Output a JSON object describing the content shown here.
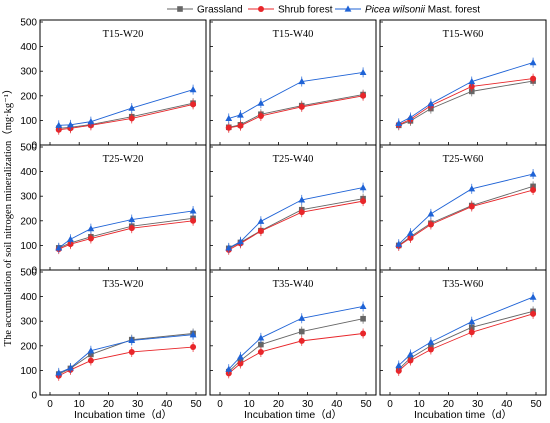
{
  "legend": [
    {
      "label": "Grassland",
      "italic_prefix": "",
      "color": "#666666",
      "marker": "square"
    },
    {
      "label": "Shrub forest",
      "italic_prefix": "",
      "color": "#e8262a",
      "marker": "circle"
    },
    {
      "label": " Mast. forest",
      "italic_prefix": "Picea wilsonii",
      "color": "#1f63d6",
      "marker": "triangle"
    }
  ],
  "ylabel": "The accumulation of soil nitrogen mineralization（mg·kg⁻¹）",
  "xlabel": "Incubation time（d）",
  "chart_data": [
    {
      "type": "line",
      "title": "T15-W20",
      "x": [
        3,
        7,
        14,
        28,
        49
      ],
      "xlim": [
        0,
        50
      ],
      "ylim": [
        0,
        500
      ],
      "series": [
        {
          "name": "Grassland",
          "values": [
            68,
            72,
            83,
            115,
            170
          ]
        },
        {
          "name": "Shrub forest",
          "values": [
            62,
            68,
            80,
            108,
            165
          ]
        },
        {
          "name": "Picea wilsonii Mast. forest",
          "values": [
            80,
            82,
            95,
            150,
            225
          ]
        }
      ]
    },
    {
      "type": "line",
      "title": "T15-W40",
      "x": [
        3,
        7,
        14,
        28,
        49
      ],
      "xlim": [
        0,
        50
      ],
      "ylim": [
        0,
        500
      ],
      "series": [
        {
          "name": "Grassland",
          "values": [
            72,
            82,
            125,
            160,
            205
          ]
        },
        {
          "name": "Shrub forest",
          "values": [
            70,
            78,
            118,
            155,
            200
          ]
        },
        {
          "name": "Picea wilsonii Mast. forest",
          "values": [
            108,
            122,
            170,
            258,
            295
          ]
        }
      ]
    },
    {
      "type": "line",
      "title": "T15-W60",
      "x": [
        3,
        7,
        14,
        28,
        49
      ],
      "xlim": [
        0,
        50
      ],
      "ylim": [
        0,
        500
      ],
      "series": [
        {
          "name": "Grassland",
          "values": [
            80,
            98,
            148,
            218,
            260
          ]
        },
        {
          "name": "Shrub forest",
          "values": [
            82,
            104,
            160,
            238,
            270
          ]
        },
        {
          "name": "Picea wilsonii Mast. forest",
          "values": [
            88,
            112,
            168,
            258,
            335
          ]
        }
      ]
    },
    {
      "type": "line",
      "title": "T25-W20",
      "x": [
        3,
        7,
        14,
        28,
        49
      ],
      "xlim": [
        0,
        50
      ],
      "ylim": [
        0,
        500
      ],
      "series": [
        {
          "name": "Grassland",
          "values": [
            90,
            110,
            135,
            178,
            210
          ]
        },
        {
          "name": "Shrub forest",
          "values": [
            85,
            105,
            128,
            170,
            200
          ]
        },
        {
          "name": "Picea wilsonii Mast. forest",
          "values": [
            90,
            125,
            168,
            205,
            240
          ]
        }
      ]
    },
    {
      "type": "line",
      "title": "T25-W40",
      "x": [
        3,
        7,
        14,
        28,
        49
      ],
      "xlim": [
        0,
        50
      ],
      "ylim": [
        0,
        500
      ],
      "series": [
        {
          "name": "Grassland",
          "values": [
            88,
            112,
            160,
            245,
            290
          ]
        },
        {
          "name": "Shrub forest",
          "values": [
            82,
            108,
            158,
            235,
            280
          ]
        },
        {
          "name": "Picea wilsonii Mast. forest",
          "values": [
            90,
            115,
            198,
            285,
            335
          ]
        }
      ]
    },
    {
      "type": "line",
      "title": "T25-W60",
      "x": [
        3,
        7,
        14,
        28,
        49
      ],
      "xlim": [
        0,
        50
      ],
      "ylim": [
        0,
        500
      ],
      "series": [
        {
          "name": "Grassland",
          "values": [
            100,
            135,
            190,
            262,
            340
          ]
        },
        {
          "name": "Shrub forest",
          "values": [
            98,
            130,
            185,
            258,
            325
          ]
        },
        {
          "name": "Picea wilsonii Mast. forest",
          "values": [
            105,
            150,
            228,
            330,
            390
          ]
        }
      ]
    },
    {
      "type": "line",
      "title": "T35-W20",
      "x": [
        3,
        7,
        14,
        28,
        49
      ],
      "xlim": [
        0,
        50
      ],
      "ylim": [
        0,
        500
      ],
      "series": [
        {
          "name": "Grassland",
          "values": [
            85,
            108,
            165,
            225,
            250
          ]
        },
        {
          "name": "Shrub forest",
          "values": [
            78,
            102,
            140,
            175,
            195
          ]
        },
        {
          "name": "Picea wilsonii Mast. forest",
          "values": [
            90,
            110,
            180,
            222,
            245
          ]
        }
      ]
    },
    {
      "type": "line",
      "title": "T35-W40",
      "x": [
        3,
        7,
        14,
        28,
        49
      ],
      "xlim": [
        0,
        50
      ],
      "ylim": [
        0,
        500
      ],
      "series": [
        {
          "name": "Grassland",
          "values": [
            95,
            140,
            205,
            258,
            310
          ]
        },
        {
          "name": "Shrub forest",
          "values": [
            88,
            128,
            175,
            220,
            250
          ]
        },
        {
          "name": "Picea wilsonii Mast. forest",
          "values": [
            105,
            155,
            232,
            312,
            360
          ]
        }
      ]
    },
    {
      "type": "line",
      "title": "T35-W60",
      "x": [
        3,
        7,
        14,
        28,
        49
      ],
      "xlim": [
        0,
        50
      ],
      "ylim": [
        0,
        500
      ],
      "series": [
        {
          "name": "Grassland",
          "values": [
            105,
            150,
            200,
            275,
            340
          ]
        },
        {
          "name": "Shrub forest",
          "values": [
            98,
            140,
            185,
            255,
            330
          ]
        },
        {
          "name": "Picea wilsonii Mast. forest",
          "values": [
            120,
            165,
            215,
            298,
            398
          ]
        }
      ]
    }
  ],
  "x_ticks": [
    0,
    10,
    20,
    30,
    40,
    50
  ],
  "y_ticks": [
    0,
    100,
    200,
    300,
    400,
    500
  ]
}
